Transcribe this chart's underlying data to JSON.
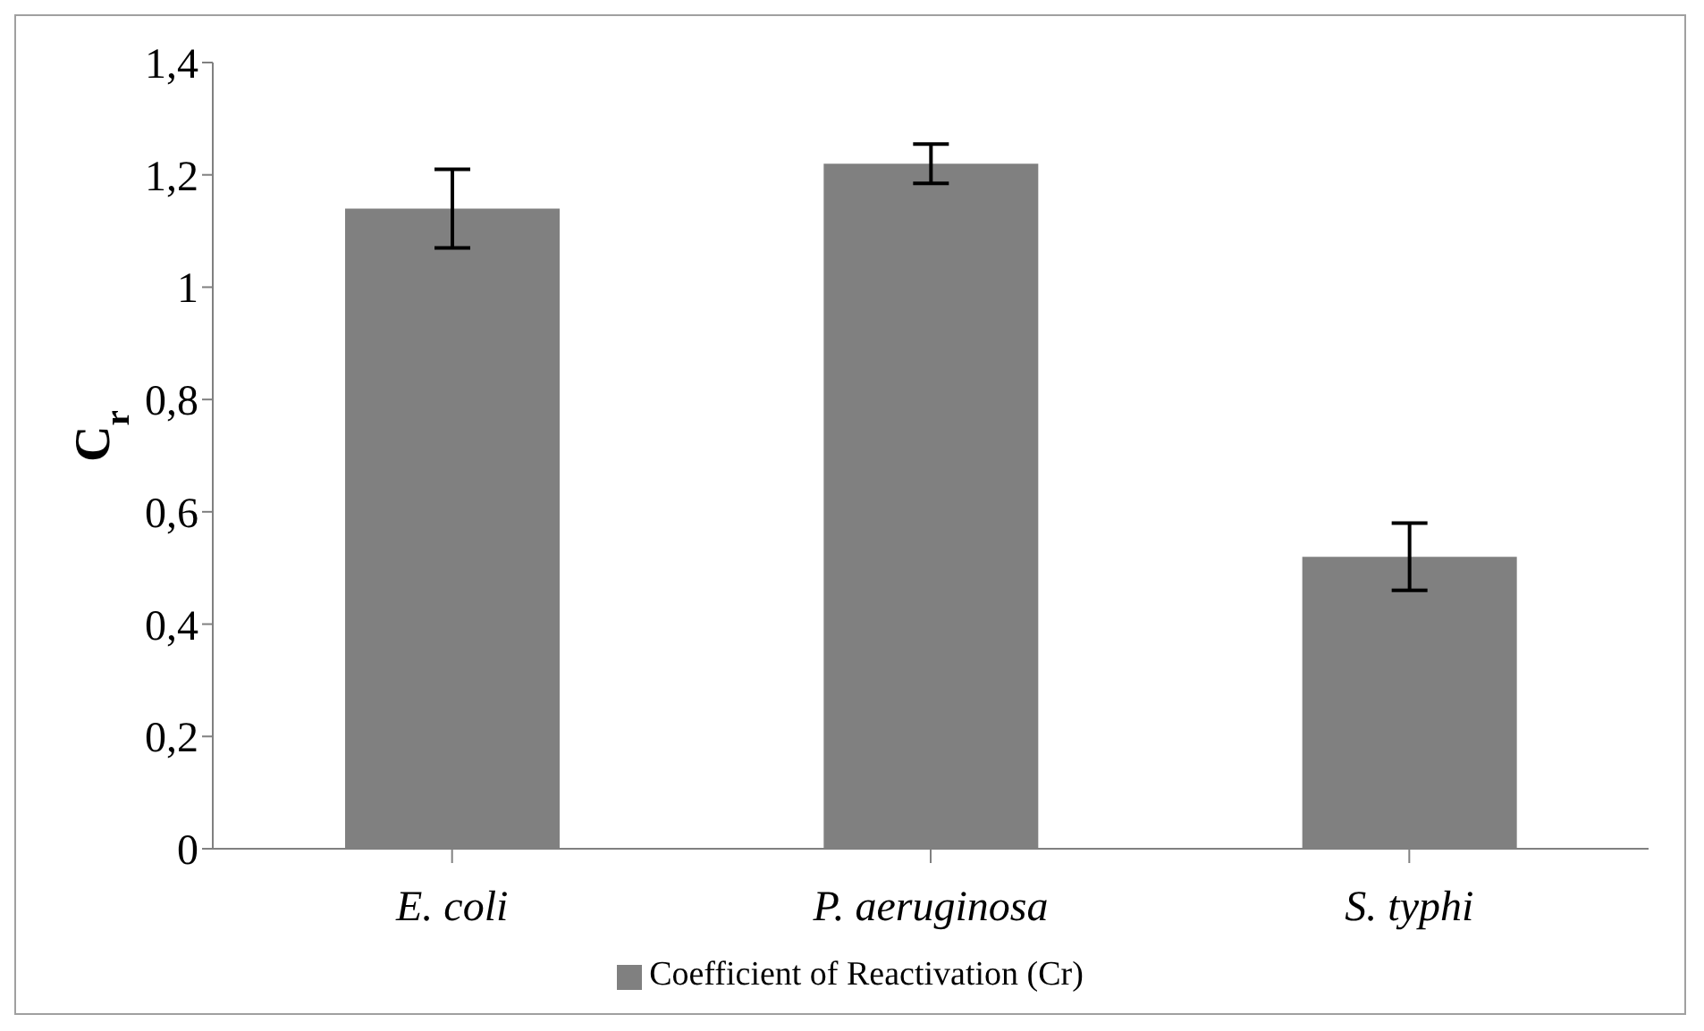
{
  "chart_data": {
    "type": "bar",
    "ylabel": "C$_{r}$",
    "categories": [
      "E. coli",
      "P. aeruginosa",
      "S. typhi"
    ],
    "series": [
      {
        "name": "Coefficient of Reactivation (Cr)",
        "color": "#808080",
        "values": [
          1.14,
          1.22,
          0.52
        ],
        "errors": [
          0.07,
          0.035,
          0.06
        ]
      }
    ],
    "ylim": [
      0,
      1.4
    ],
    "yticks": [
      0,
      {
        "value": 0.2,
        "label": "0,2"
      },
      {
        "value": 0.4,
        "label": "0,4"
      },
      {
        "value": 0.6,
        "label": "0,6"
      },
      {
        "value": 0.8,
        "label": "0,8"
      },
      1,
      {
        "value": 1.2,
        "label": "1,2"
      },
      {
        "value": 1.4,
        "label": "1,4"
      }
    ],
    "grid": false,
    "legend": "bottom"
  }
}
